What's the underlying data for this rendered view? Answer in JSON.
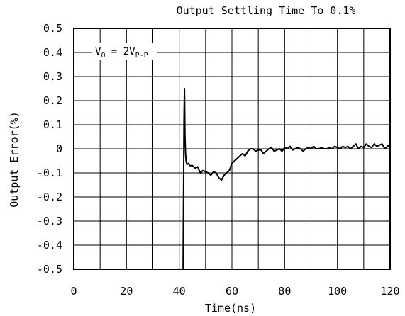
{
  "chart_data": {
    "type": "line",
    "title": "Output Settling Time To 0.1%",
    "xlabel": "Time(ns)",
    "ylabel": "Output Error(%)",
    "xlim": [
      0,
      120
    ],
    "ylim": [
      -0.5,
      0.5
    ],
    "grid": true,
    "x_ticks": [
      0,
      20,
      40,
      60,
      80,
      100,
      120
    ],
    "y_ticks": [
      "0.5",
      "0.4",
      "0.3",
      "0.2",
      "0.1",
      "0",
      "-0.1",
      "-0.2",
      "-0.3",
      "-0.4",
      "-0.5"
    ],
    "annotation": {
      "main": "V",
      "sub1": "O",
      "eq": " = 2V",
      "sub2": "P-P"
    },
    "series": [
      {
        "x": [
          41.5,
          41.5,
          41.8,
          42.0,
          42.2,
          42.4,
          42.6,
          42.8,
          43.0,
          43.5,
          44,
          45,
          46,
          47,
          48,
          49,
          50,
          51,
          52,
          53,
          54,
          55,
          56,
          57,
          58,
          59,
          60,
          61,
          62,
          63,
          64,
          65,
          66,
          67,
          68,
          69,
          70,
          71,
          72,
          73,
          74,
          75,
          76,
          77,
          78,
          79,
          80,
          81,
          82,
          83,
          84,
          85,
          86,
          87,
          88,
          89,
          90,
          91,
          92,
          93,
          94,
          95,
          96,
          97,
          98,
          99,
          100,
          101,
          102,
          103,
          104,
          105,
          106,
          107,
          108,
          109,
          110,
          111,
          112,
          113,
          114,
          115,
          116,
          117,
          118,
          119,
          120
        ],
        "y": [
          -0.5,
          -0.47,
          0.12,
          0.25,
          0.05,
          -0.02,
          -0.05,
          -0.06,
          -0.065,
          -0.06,
          -0.07,
          -0.07,
          -0.08,
          -0.075,
          -0.1,
          -0.09,
          -0.095,
          -0.1,
          -0.11,
          -0.095,
          -0.1,
          -0.12,
          -0.13,
          -0.11,
          -0.1,
          -0.09,
          -0.06,
          -0.05,
          -0.04,
          -0.03,
          -0.02,
          -0.03,
          -0.01,
          0.0,
          0.0,
          -0.01,
          -0.005,
          -0.005,
          -0.02,
          -0.01,
          0.0,
          0.005,
          -0.01,
          -0.005,
          0.0,
          -0.01,
          0.005,
          0.0,
          0.01,
          -0.005,
          0.0,
          0.005,
          0.0,
          -0.01,
          0.0,
          0.005,
          0.0,
          0.01,
          0.0,
          0.0,
          0.005,
          0.0,
          0.0,
          0.005,
          0.0,
          0.01,
          0.005,
          0.0,
          0.01,
          0.005,
          0.01,
          0.0,
          0.01,
          0.02,
          0.0,
          0.01,
          0.005,
          0.02,
          0.01,
          0.005,
          0.02,
          0.01,
          0.015,
          0.02,
          0.0,
          0.01,
          0.02
        ]
      }
    ]
  }
}
